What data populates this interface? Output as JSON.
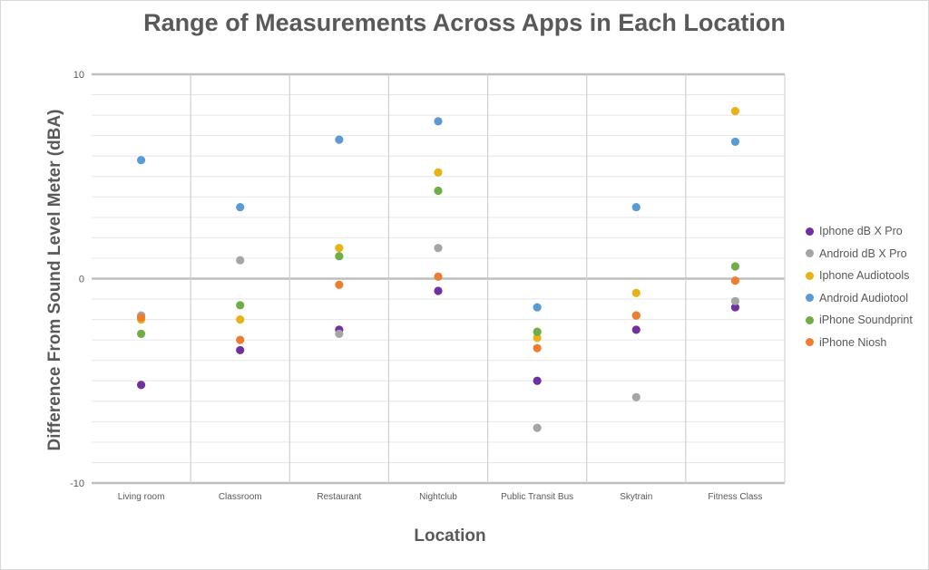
{
  "chart_data": {
    "type": "scatter",
    "title": "Range of Measurements Across Apps in Each Location",
    "xlabel": "Location",
    "ylabel": "Difference From Sound Level Meter (dBA)",
    "categories": [
      "Living room",
      "Classroom",
      "Restaurant",
      "Nightclub",
      "Public Transit Bus",
      "Skytrain",
      "Fitness Class"
    ],
    "ylim": [
      -10,
      10
    ],
    "y_ticks": [
      "10",
      "0",
      "-10"
    ],
    "grid": true,
    "legend_position": "right",
    "series": [
      {
        "name": "Iphone dB X Pro",
        "color": "#7030a0",
        "values": [
          -5.2,
          -3.5,
          -2.5,
          -0.6,
          -5.0,
          -2.5,
          -1.4
        ]
      },
      {
        "name": "Android dB X Pro",
        "color": "#a5a5a5",
        "values": [
          -1.8,
          0.9,
          -2.7,
          1.5,
          -7.3,
          -5.8,
          -1.1
        ]
      },
      {
        "name": "Iphone Audiotools",
        "color": "#e8b317",
        "values": [
          -2.0,
          -2.0,
          1.5,
          5.2,
          -2.9,
          -0.7,
          8.2
        ]
      },
      {
        "name": "Android Audiotool",
        "color": "#5b9bd5",
        "values": [
          5.8,
          3.5,
          6.8,
          7.7,
          -1.4,
          3.5,
          6.7
        ]
      },
      {
        "name": "iPhone Soundprint",
        "color": "#70ad47",
        "values": [
          -2.7,
          -1.3,
          1.1,
          4.3,
          -2.6,
          -1.8,
          0.6
        ]
      },
      {
        "name": "iPhone Niosh",
        "color": "#ed7d31",
        "values": [
          -1.9,
          -3.0,
          -0.3,
          0.1,
          -3.4,
          -1.8,
          -0.1
        ]
      }
    ]
  }
}
